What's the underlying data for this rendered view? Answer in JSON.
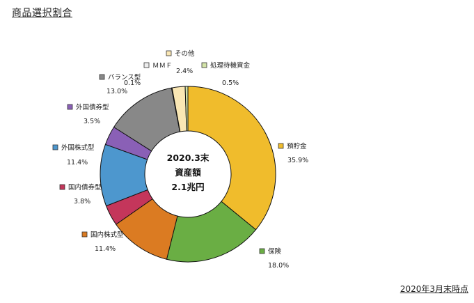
{
  "title": "商品選択割合",
  "footnote": "2020年3月末時点",
  "chart_data": {
    "type": "pie",
    "variant": "donut",
    "center_label": [
      "2020.3末",
      "資産額",
      "2.1兆円"
    ],
    "unit": "%",
    "slices": [
      {
        "name": "預貯金",
        "value": 35.9,
        "label": "35.9%",
        "color": "#F0BC2C"
      },
      {
        "name": "保険",
        "value": 18.0,
        "label": "18.0%",
        "color": "#6AAE44"
      },
      {
        "name": "国内株式型",
        "value": 11.4,
        "label": "11.4%",
        "color": "#DB7B22"
      },
      {
        "name": "国内債券型",
        "value": 3.8,
        "label": "3.8%",
        "color": "#C4365B"
      },
      {
        "name": "外国株式型",
        "value": 11.4,
        "label": "11.4%",
        "color": "#4D97CE"
      },
      {
        "name": "外国債券型",
        "value": 3.5,
        "label": "3.5%",
        "color": "#8A60B6"
      },
      {
        "name": "バランス型",
        "value": 13.0,
        "label": "13.0%",
        "color": "#888888"
      },
      {
        "name": "ＭＭＦ",
        "value": 0.1,
        "label": "0.1%",
        "color": "#EDEDED"
      },
      {
        "name": "その他",
        "value": 2.4,
        "label": "2.4%",
        "color": "#FAE7B4"
      },
      {
        "name": "処理待機資金",
        "value": 0.5,
        "label": "0.5%",
        "color": "#D3E3A8"
      }
    ]
  }
}
